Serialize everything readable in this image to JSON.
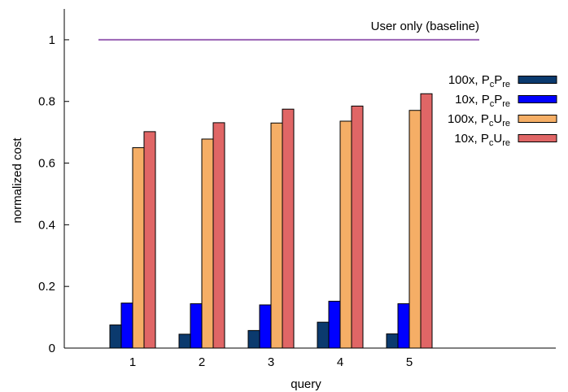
{
  "chart_data": {
    "type": "bar",
    "xlabel": "query",
    "ylabel": "normalized cost",
    "categories": [
      "1",
      "2",
      "3",
      "4",
      "5"
    ],
    "ylim": [
      0,
      1.1
    ],
    "yticks": [
      "0",
      "0.2",
      "0.4",
      "0.6",
      "0.8",
      "1"
    ],
    "grid": false,
    "legend_position": "top-right",
    "series": [
      {
        "name_main": "100x, P",
        "name_sub1": "c",
        "name_mid": "P",
        "name_sub2": "re",
        "color": "#0b3a6e",
        "values": [
          0.075,
          0.045,
          0.057,
          0.084,
          0.046
        ]
      },
      {
        "name_main": "10x, P",
        "name_sub1": "c",
        "name_mid": "P",
        "name_sub2": "re",
        "color": "#0000ff",
        "values": [
          0.146,
          0.144,
          0.14,
          0.152,
          0.144
        ]
      },
      {
        "name_main": "100x, P",
        "name_sub1": "c",
        "name_mid": "U",
        "name_sub2": "re",
        "color": "#f5ae66",
        "values": [
          0.65,
          0.678,
          0.73,
          0.736,
          0.771
        ]
      },
      {
        "name_main": "10x, P",
        "name_sub1": "c",
        "name_mid": "U",
        "name_sub2": "re",
        "color": "#e06666",
        "values": [
          0.702,
          0.731,
          0.775,
          0.785,
          0.825
        ]
      }
    ],
    "baseline": {
      "label": "User only (baseline)",
      "value": 1.0,
      "color": "#9a63b5"
    }
  }
}
